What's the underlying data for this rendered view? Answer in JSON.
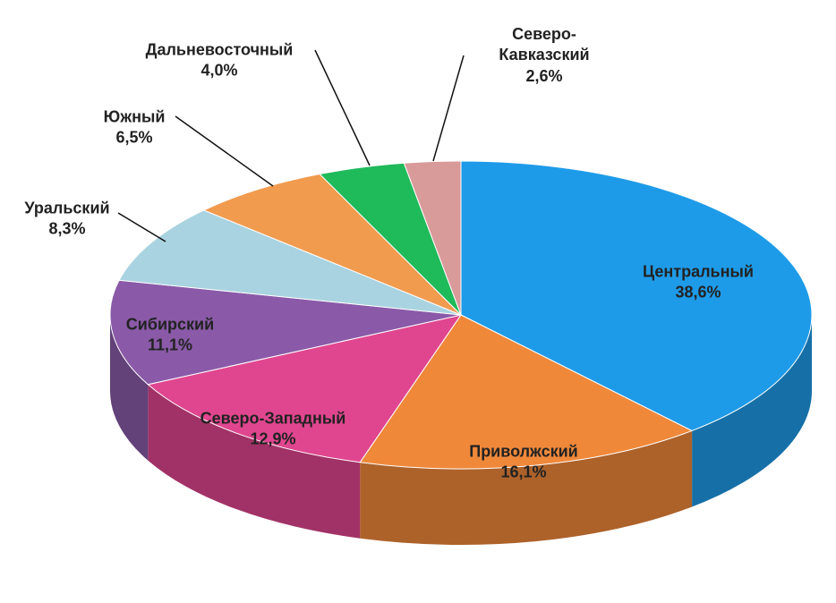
{
  "chart_data": {
    "type": "pie",
    "categories": [
      "Центральный",
      "Приволжский",
      "Северо-Западный",
      "Сибирский",
      "Уральский",
      "Южный",
      "Дальневосточный",
      "Северо-Кавказский"
    ],
    "values": [
      38.6,
      16.1,
      12.9,
      11.1,
      8.3,
      6.5,
      4.0,
      2.6
    ],
    "value_labels": [
      "38,6%",
      "16,1%",
      "12,9%",
      "11,1%",
      "8,3%",
      "6,5%",
      "4,0%",
      "2,6%"
    ],
    "colors": [
      "#1e9be8",
      "#f0883a",
      "#e0468f",
      "#8a5aa8",
      "#a9d3e0",
      "#f19b4f",
      "#1fba5a",
      "#d99a9a"
    ]
  }
}
